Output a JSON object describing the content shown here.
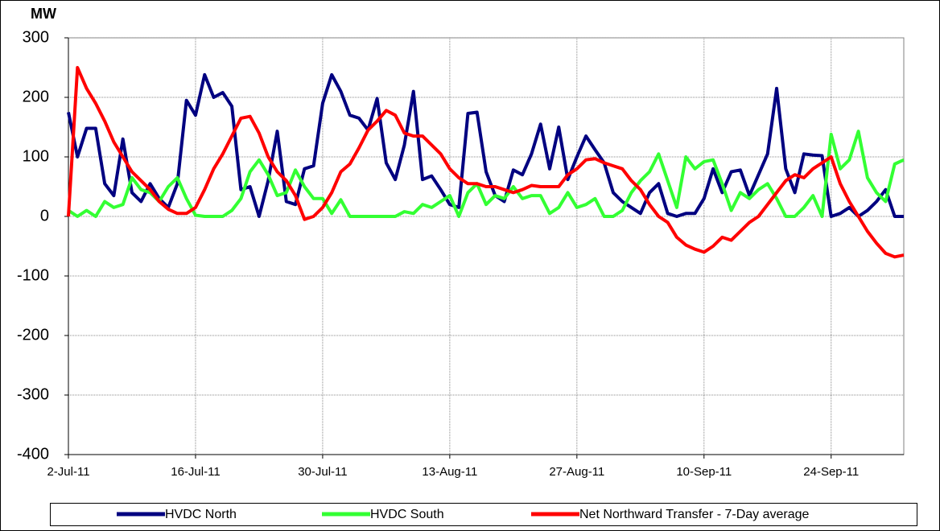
{
  "chart_data": {
    "type": "line",
    "y_axis_label": "MW",
    "categories": [
      "2-Jul-11",
      null,
      null,
      null,
      null,
      null,
      null,
      null,
      null,
      null,
      null,
      null,
      null,
      null,
      "16-Jul-11",
      null,
      null,
      null,
      null,
      null,
      null,
      null,
      null,
      null,
      null,
      null,
      null,
      null,
      "30-Jul-11",
      null,
      null,
      null,
      null,
      null,
      null,
      null,
      null,
      null,
      null,
      null,
      null,
      null,
      "13-Aug-11",
      null,
      null,
      null,
      null,
      null,
      null,
      null,
      null,
      null,
      null,
      null,
      null,
      null,
      "27-Aug-11",
      null,
      null,
      null,
      null,
      null,
      null,
      null,
      null,
      null,
      null,
      null,
      null,
      null,
      "10-Sep-11",
      null,
      null,
      null,
      null,
      null,
      null,
      null,
      null,
      null,
      null,
      null,
      null,
      null,
      "24-Sep-11",
      null,
      null,
      null,
      null,
      null,
      null,
      null,
      null
    ],
    "series": [
      {
        "name": "HVDC North",
        "color": "#000080",
        "values": [
          175,
          100,
          148,
          148,
          55,
          35,
          130,
          40,
          25,
          55,
          30,
          15,
          55,
          195,
          170,
          238,
          200,
          208,
          185,
          45,
          50,
          0,
          60,
          143,
          25,
          20,
          80,
          85,
          190,
          238,
          210,
          170,
          165,
          145,
          198,
          90,
          62,
          120,
          210,
          62,
          68,
          45,
          20,
          15,
          173,
          175,
          75,
          35,
          25,
          78,
          70,
          105,
          155,
          80,
          150,
          62,
          100,
          135,
          112,
          90,
          40,
          25,
          15,
          5,
          40,
          55,
          5,
          0,
          5,
          5,
          30,
          80,
          40,
          75,
          78,
          35,
          70,
          105,
          215,
          80,
          40,
          105,
          103,
          102,
          0,
          5,
          15,
          0,
          10,
          25,
          45,
          0,
          0
        ]
      },
      {
        "name": "HVDC South",
        "color": "#33ff33",
        "values": [
          10,
          0,
          10,
          0,
          25,
          15,
          20,
          65,
          45,
          40,
          25,
          50,
          65,
          30,
          2,
          0,
          0,
          0,
          10,
          30,
          75,
          95,
          70,
          35,
          40,
          78,
          50,
          30,
          30,
          5,
          28,
          0,
          0,
          0,
          0,
          0,
          0,
          8,
          5,
          20,
          15,
          25,
          35,
          0,
          40,
          55,
          20,
          35,
          30,
          50,
          30,
          35,
          35,
          5,
          15,
          40,
          15,
          20,
          30,
          0,
          0,
          10,
          40,
          60,
          75,
          105,
          60,
          15,
          100,
          80,
          92,
          95,
          55,
          10,
          40,
          30,
          45,
          55,
          30,
          0,
          0,
          15,
          35,
          0,
          138,
          80,
          95,
          143,
          65,
          40,
          25,
          88,
          95
        ]
      },
      {
        "name": "Net Northward Transfer - 7-Day average",
        "color": "#ff0000",
        "values": [
          0,
          250,
          215,
          190,
          160,
          125,
          100,
          75,
          60,
          45,
          25,
          12,
          5,
          5,
          15,
          45,
          80,
          105,
          135,
          165,
          168,
          140,
          100,
          75,
          60,
          35,
          -5,
          0,
          15,
          40,
          75,
          88,
          115,
          145,
          160,
          178,
          170,
          140,
          135,
          135,
          120,
          105,
          80,
          65,
          55,
          55,
          50,
          50,
          45,
          40,
          45,
          52,
          50,
          50,
          50,
          70,
          80,
          95,
          97,
          90,
          85,
          80,
          60,
          45,
          20,
          0,
          -10,
          -35,
          -48,
          -55,
          -60,
          -50,
          -35,
          -40,
          -25,
          -10,
          0,
          20,
          40,
          60,
          70,
          65,
          80,
          90,
          100,
          55,
          25,
          0,
          -25,
          -45,
          -62,
          -68,
          -65
        ]
      }
    ],
    "ylim": [
      -400,
      300
    ],
    "yticks": [
      -400,
      -300,
      -200,
      -100,
      0,
      100,
      200,
      300
    ],
    "grid": true,
    "legend": "bottom"
  }
}
